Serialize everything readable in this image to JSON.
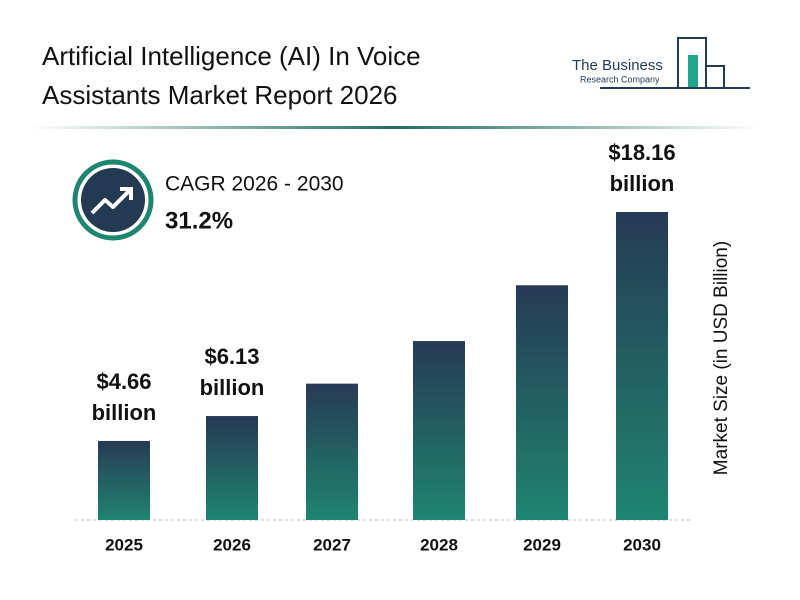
{
  "chart_data": {
    "type": "bar",
    "title": "Artificial Intelligence (AI) In Voice Assistants Market Report 2026",
    "logo": {
      "line1": "The Business",
      "line2": "Research Company"
    },
    "cagr_label": "CAGR 2026 - 2030",
    "cagr_value": "31.2%",
    "y_label": "Market Size (in USD Billion)",
    "categories": [
      "2025",
      "2026",
      "2027",
      "2028",
      "2029",
      "2030"
    ],
    "values": [
      4.66,
      6.13,
      8.04,
      10.55,
      13.84,
      18.16
    ],
    "value_labels": [
      "$4.66 billion",
      "$6.13 billion",
      null,
      null,
      null,
      "$18.16 billion"
    ],
    "color": {
      "top": "#263a54",
      "bottom": "#1f8571"
    }
  }
}
